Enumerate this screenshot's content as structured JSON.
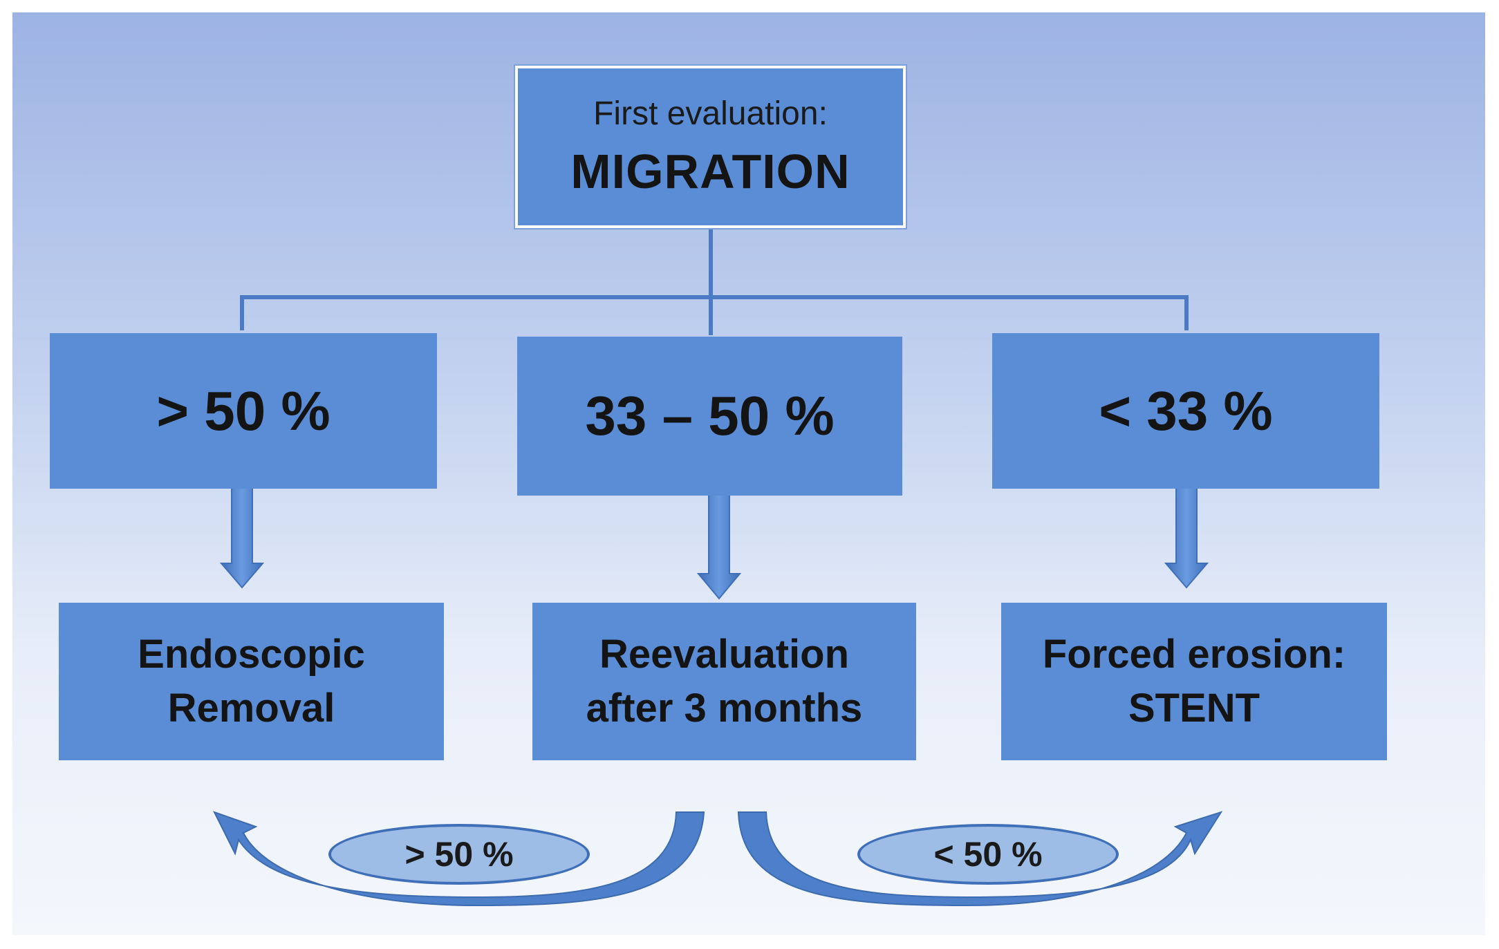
{
  "root": {
    "subtitle": "First evaluation:",
    "title": "MIGRATION"
  },
  "ranges": [
    {
      "label": "> 50 %"
    },
    {
      "label": "33 – 50 %"
    },
    {
      "label": "< 33 %"
    }
  ],
  "actions": [
    {
      "line1": "Endoscopic",
      "line2": "Removal"
    },
    {
      "line1": "Reevaluation",
      "line2": "after 3 months"
    },
    {
      "line1": "Forced erosion:",
      "line2": "STENT"
    }
  ],
  "reassessment": {
    "left_label": "> 50 %",
    "right_label": "< 50 %"
  },
  "colors": {
    "box_fill": "#5b8dd6",
    "connector": "#4a7bc4",
    "pill_fill": "#9dbde6"
  }
}
